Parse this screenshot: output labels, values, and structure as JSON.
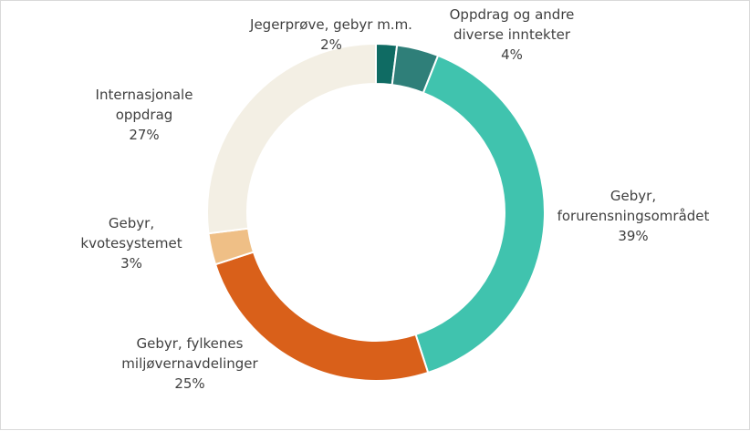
{
  "chart_data": {
    "type": "pie",
    "variant": "donut",
    "title": "",
    "slices": [
      {
        "label_lines": [
          "Jegerprøve, gebyr m.m."
        ],
        "percent_label": "2%",
        "value": 2,
        "color": "#0f6b63"
      },
      {
        "label_lines": [
          "Oppdrag og andre",
          "diverse inntekter"
        ],
        "percent_label": "4%",
        "value": 4,
        "color": "#2f7f79"
      },
      {
        "label_lines": [
          "Gebyr,",
          "forurensningsområdet"
        ],
        "percent_label": "39%",
        "value": 39,
        "color": "#40c3ae"
      },
      {
        "label_lines": [
          "Gebyr, fylkenes",
          "miljøvernavdelinger"
        ],
        "percent_label": "25%",
        "value": 25,
        "color": "#d9601a"
      },
      {
        "label_lines": [
          "Gebyr,",
          "kvotesystemet"
        ],
        "percent_label": "3%",
        "value": 3,
        "color": "#efbf86"
      },
      {
        "label_lines": [
          "Internasjonale",
          "oppdrag"
        ],
        "percent_label": "27%",
        "value": 27,
        "color": "#f3efe4"
      }
    ],
    "legend": "none",
    "data_labels": "outside"
  }
}
